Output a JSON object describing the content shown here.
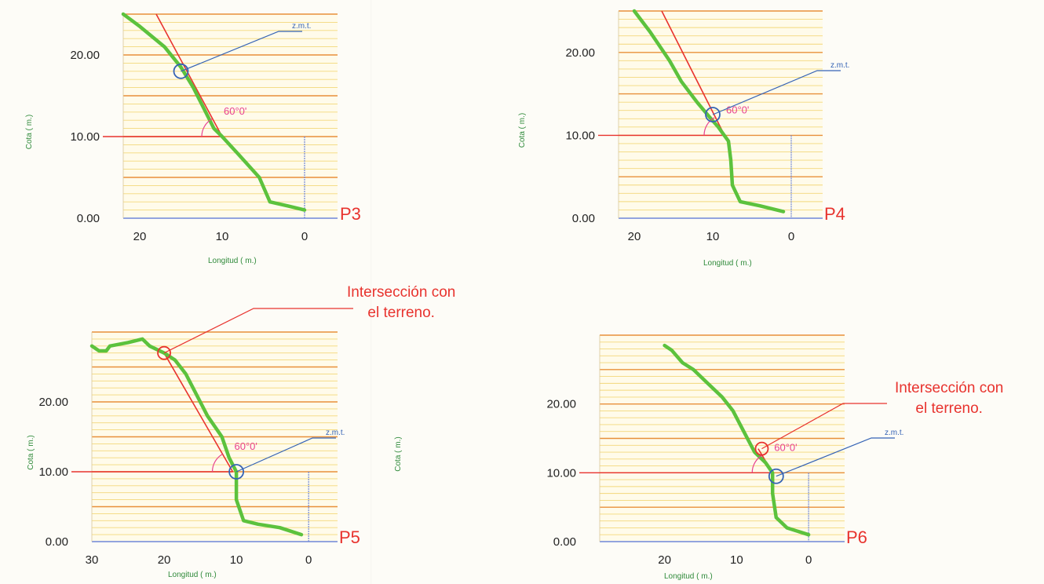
{
  "common": {
    "ylabel": "Cota  ( m.)",
    "xlabel": "Longitud  ( m.)",
    "zmt_label": "z.m.t.",
    "angle_label": "60°0'",
    "colors": {
      "terrain": "#5cc23d",
      "slope": "#e8332e",
      "zmt": "#3563b5",
      "angle": "#e8418f",
      "major_grid": "#e8903a",
      "minor_grid": "#f3d87a",
      "baseline": "#6f86d8",
      "label_red": "#e8332e",
      "axis_green": "#2f8a3a",
      "tick_text": "#222222"
    }
  },
  "annotations": [
    {
      "id": "p5",
      "lines": [
        "Intersección con",
        "el terreno."
      ]
    },
    {
      "id": "p6",
      "lines": [
        "Intersección con",
        "el terreno."
      ]
    }
  ],
  "chart_data": [
    {
      "type": "line",
      "profile": "P3",
      "ylabel": "Cota  ( m.)",
      "xlabel": "Longitud  ( m.)",
      "x_reversed": true,
      "xlim": [
        22,
        -4
      ],
      "ylim": [
        0,
        25
      ],
      "x_ticks": [
        "20",
        "10",
        "0"
      ],
      "x_tick_values": [
        20,
        10,
        0
      ],
      "y_ticks": [
        "0.00",
        "10.00",
        "20.00"
      ],
      "y_tick_values": [
        0,
        10,
        20
      ],
      "terrain": [
        [
          22,
          25
        ],
        [
          20,
          23.5
        ],
        [
          17,
          21
        ],
        [
          15,
          18.5
        ],
        [
          13.5,
          16
        ],
        [
          12.5,
          14
        ],
        [
          11,
          11
        ],
        [
          10,
          10
        ],
        [
          8,
          7.8
        ],
        [
          5.5,
          5
        ],
        [
          4.2,
          2
        ],
        [
          2,
          1.5
        ],
        [
          0,
          1
        ]
      ],
      "slope_line": [
        [
          18,
          25
        ],
        [
          10,
          10
        ]
      ],
      "formation_level": 10,
      "vertical_x": 0,
      "zmt_point": [
        15,
        18
      ],
      "zmt_label": "z.m.t.",
      "angle_label": "60°0'"
    },
    {
      "type": "line",
      "profile": "P4",
      "ylabel": "Cota  ( m.)",
      "xlabel": "Longitud  ( m.)",
      "x_reversed": true,
      "xlim": [
        22,
        -4
      ],
      "ylim": [
        0,
        25
      ],
      "x_ticks": [
        "20",
        "10",
        "0"
      ],
      "x_tick_values": [
        20,
        10,
        0
      ],
      "y_ticks": [
        "0.00",
        "10.00",
        "20.00"
      ],
      "y_tick_values": [
        0,
        10,
        20
      ],
      "terrain": [
        [
          20,
          25
        ],
        [
          18,
          22.5
        ],
        [
          15.5,
          19
        ],
        [
          14,
          16.5
        ],
        [
          12,
          14
        ],
        [
          10.5,
          12.3
        ],
        [
          9.3,
          11
        ],
        [
          8,
          9.3
        ],
        [
          7.7,
          7
        ],
        [
          7.5,
          4
        ],
        [
          6.5,
          2
        ],
        [
          4,
          1.5
        ],
        [
          1,
          0.8
        ]
      ],
      "slope_line": [
        [
          16.5,
          25
        ],
        [
          8.5,
          10
        ]
      ],
      "formation_level": 10,
      "vertical_x": 0,
      "zmt_point": [
        10,
        12.5
      ],
      "zmt_label": "z.m.t.",
      "angle_label": "60°0'"
    },
    {
      "type": "line",
      "profile": "P5",
      "ylabel": "Cota  ( m.)",
      "xlabel": "Longitud  ( m.)",
      "x_reversed": true,
      "xlim": [
        30,
        -4
      ],
      "ylim": [
        0,
        30
      ],
      "x_ticks": [
        "30",
        "20",
        "10",
        "0"
      ],
      "x_tick_values": [
        30,
        20,
        10,
        0
      ],
      "y_ticks": [
        "0.00",
        "10.00",
        "20.00"
      ],
      "y_tick_values": [
        0,
        10,
        20
      ],
      "terrain": [
        [
          30,
          28
        ],
        [
          29,
          27.3
        ],
        [
          28,
          27.3
        ],
        [
          27.5,
          28
        ],
        [
          25,
          28.5
        ],
        [
          23,
          29
        ],
        [
          22,
          28
        ],
        [
          20,
          27
        ],
        [
          18.5,
          26
        ],
        [
          17,
          24
        ],
        [
          15,
          20
        ],
        [
          14,
          18
        ],
        [
          12,
          15
        ],
        [
          11,
          12
        ],
        [
          10,
          10
        ],
        [
          10,
          6
        ],
        [
          9,
          3
        ],
        [
          7,
          2.5
        ],
        [
          4,
          2
        ],
        [
          1,
          1
        ]
      ],
      "slope_line": [
        [
          20,
          27
        ],
        [
          10.5,
          10
        ]
      ],
      "formation_level": 10,
      "vertical_x": 0,
      "zmt_point": [
        10,
        10
      ],
      "intersection_point": [
        20,
        27
      ],
      "zmt_label": "z.m.t.",
      "angle_label": "60°0'"
    },
    {
      "type": "line",
      "profile": "P6",
      "ylabel": "Cota  ( m.)",
      "xlabel": "Longitud  ( m.)",
      "x_reversed": true,
      "xlim": [
        29,
        -5
      ],
      "ylim": [
        0,
        30
      ],
      "x_ticks": [
        "20",
        "10",
        "0"
      ],
      "x_tick_values": [
        20,
        10,
        0
      ],
      "y_ticks": [
        "0.00",
        "10.00",
        "20.00"
      ],
      "y_tick_values": [
        0,
        10,
        20
      ],
      "terrain": [
        [
          20,
          28.5
        ],
        [
          19,
          27.8
        ],
        [
          17.5,
          26
        ],
        [
          16,
          25
        ],
        [
          14,
          23
        ],
        [
          12,
          21
        ],
        [
          10.5,
          19
        ],
        [
          9,
          16
        ],
        [
          7.5,
          13
        ],
        [
          6,
          11.5
        ],
        [
          5,
          10
        ],
        [
          5,
          7
        ],
        [
          4.5,
          3.5
        ],
        [
          3,
          2
        ],
        [
          0,
          1
        ]
      ],
      "slope_line": [
        [
          7,
          13.5
        ],
        [
          5,
          10
        ]
      ],
      "formation_level": 10,
      "vertical_x": 0,
      "zmt_point": [
        4.5,
        9.5
      ],
      "intersection_point": [
        6.5,
        13.5
      ],
      "zmt_label": "z.m.t.",
      "angle_label": "60°0'"
    }
  ]
}
